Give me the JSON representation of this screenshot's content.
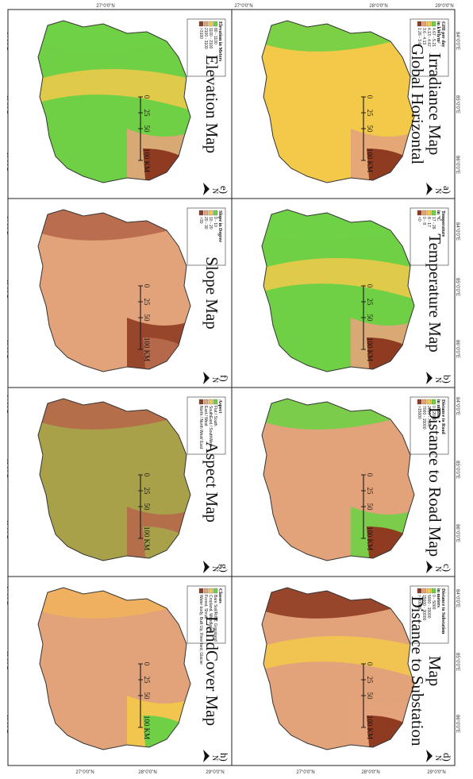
{
  "ticks": {
    "top_lat": [
      "27°0'0\"N",
      "28°0'0\"N",
      "29°0'0\"N"
    ],
    "bottom_lat": [
      "27°0'0\"N",
      "28°0'0\"N",
      "29°0'0\"N"
    ],
    "side_lon": [
      "84°0'0\"E",
      "85°0'0\"E",
      "86°0'0\"E"
    ]
  },
  "scalebar": [
    "0",
    "25",
    "50",
    "100 KM"
  ],
  "north": "N",
  "colors": {
    "dark_red": "#8e3b22",
    "brown": "#b5684a",
    "salmon": "#e3a37a",
    "light_orange": "#f0b35c",
    "yellow": "#f3c94a",
    "green": "#6fd045",
    "bright_green": "#5ee03e",
    "olive": "#a9a04a"
  },
  "panels": [
    {
      "id": "a",
      "label": "a)",
      "title_lines": [
        "Global Horizontal",
        "Irradiance Map"
      ],
      "legend_title": [
        "GHI per day",
        "in kWh/m²"
      ],
      "legend": [
        {
          "c": "#6fd045",
          "t": "4.67 - 5.21"
        },
        {
          "c": "#f3c94a",
          "t": "4.13 - 4.67"
        },
        {
          "c": "#e3a37a",
          "t": "3.6 - 4.13"
        },
        {
          "c": "#8e3b22",
          "t": "1.26 - 3.6"
        }
      ]
    },
    {
      "id": "b",
      "label": "b)",
      "title_lines": [
        "Temperature Map"
      ],
      "legend_title": [
        "Temperature",
        "in °C"
      ],
      "legend": [
        {
          "c": "#6fd045",
          "t": "17 - 26"
        },
        {
          "c": "#f3c94a",
          "t": "8 - 17"
        },
        {
          "c": "#e3a37a",
          "t": "0 - 8"
        },
        {
          "c": "#8e3b22",
          "t": "<0"
        }
      ]
    },
    {
      "id": "c",
      "label": "c)",
      "title_lines": [
        "Distance to Road Map"
      ],
      "legend_title": [
        "Distance to Road",
        "in meters"
      ],
      "legend": [
        {
          "c": "#6fd045",
          "t": "0 - 2000"
        },
        {
          "c": "#f3c94a",
          "t": "2000 - 7000"
        },
        {
          "c": "#e3a37a",
          "t": "7000 - 15000"
        },
        {
          "c": "#8e3b22",
          "t": ">15000"
        }
      ]
    },
    {
      "id": "d",
      "label": "d)",
      "title_lines": [
        "Distance to Substation",
        "Map"
      ],
      "legend_title": [
        "Distance to Substation",
        "in meters"
      ],
      "legend": [
        {
          "c": "#6fd045",
          "t": "0 - 5000"
        },
        {
          "c": "#f3c94a",
          "t": "5000 - 15000"
        },
        {
          "c": "#e3a37a",
          "t": "15000 - 30000"
        },
        {
          "c": "#8e3b22",
          "t": "> 30000"
        }
      ]
    },
    {
      "id": "e",
      "label": "e)",
      "title_lines": [
        "Elevation Map"
      ],
      "legend_title": [
        "Elevation in Meters"
      ],
      "legend": [
        {
          "c": "#6fd045",
          "t": "80 - 1100"
        },
        {
          "c": "#f3c94a",
          "t": "1100 - 2100"
        },
        {
          "c": "#e3a37a",
          "t": "2100 - 3100"
        },
        {
          "c": "#8e3b22",
          "t": ">3100"
        }
      ]
    },
    {
      "id": "f",
      "label": "f)",
      "title_lines": [
        "Slope Map"
      ],
      "legend_title": [
        "Slope in Degree"
      ],
      "legend": [
        {
          "c": "#6fd045",
          "t": "0 - 10"
        },
        {
          "c": "#f3c94a",
          "t": "10 - 20"
        },
        {
          "c": "#e3a37a",
          "t": "20 - 30"
        },
        {
          "c": "#8e3b22",
          "t": ">30"
        }
      ]
    },
    {
      "id": "g",
      "label": "g)",
      "title_lines": [
        "Aspect Map"
      ],
      "legend_title": [
        "Aspect"
      ],
      "legend": [
        {
          "c": "#6fd045",
          "t": "Flat / South"
        },
        {
          "c": "#f3c94a",
          "t": "SouthEast / SouthWest"
        },
        {
          "c": "#e3a37a",
          "t": "East / West"
        },
        {
          "c": "#8e3b22",
          "t": "North / North West/ East"
        }
      ]
    },
    {
      "id": "h",
      "label": "h)",
      "title_lines": [
        "LandCover Map"
      ],
      "legend_title": [
        "Classes"
      ],
      "legend": [
        {
          "c": "#6fd045",
          "t": "Bare Soil/Rock, Grassland"
        },
        {
          "c": "#f3c94a",
          "t": "Cropland, Woodland"
        },
        {
          "c": "#e3a37a",
          "t": "Forest, Shrub"
        },
        {
          "c": "#8e3b22",
          "t": "Water body, Built Up, River bed, Glacier"
        }
      ]
    }
  ]
}
